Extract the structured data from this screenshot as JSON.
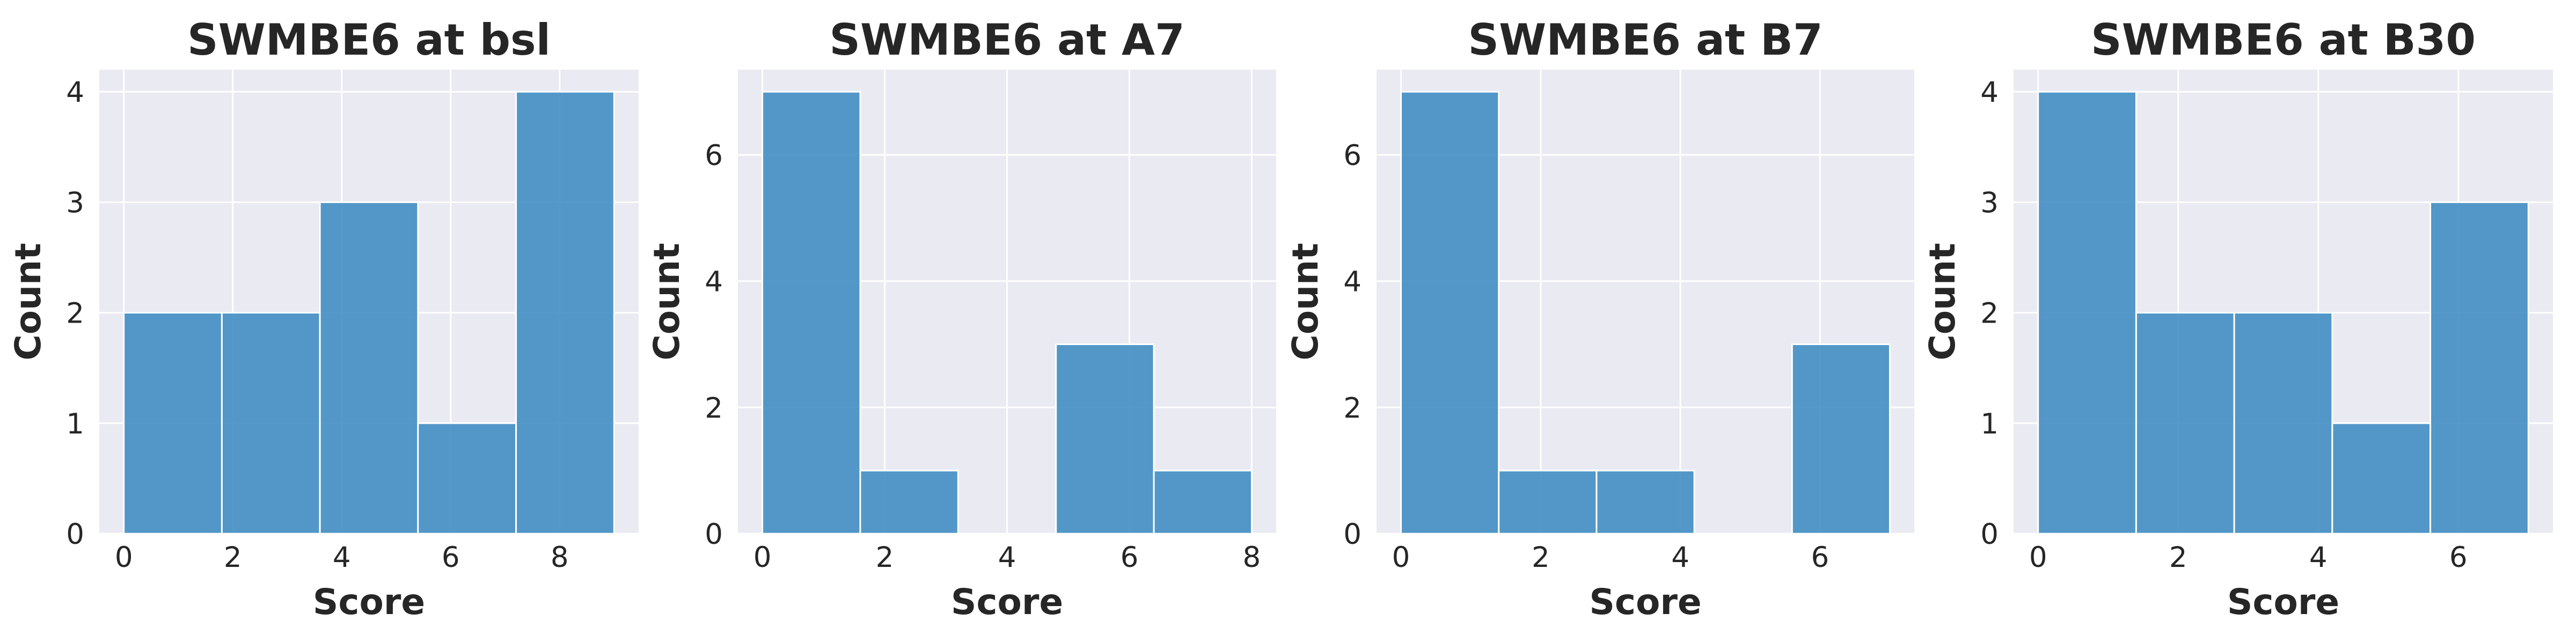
{
  "chart_data": [
    {
      "type": "bar",
      "title": "SWMBE6 at bsl",
      "xlabel": "Score",
      "ylabel": "Count",
      "bin_edges": [
        0,
        1.8,
        3.6,
        5.4,
        7.2,
        9
      ],
      "values": [
        2,
        2,
        3,
        1,
        4
      ],
      "xticks": [
        0,
        2,
        4,
        6,
        8
      ],
      "yticks": [
        0,
        1,
        2,
        3,
        4
      ],
      "xlim": [
        -0.45,
        9.45
      ],
      "ylim": [
        0,
        4.2
      ],
      "grid": true,
      "bar_color": "#3c8bc2"
    },
    {
      "type": "bar",
      "title": "SWMBE6 at A7",
      "xlabel": "Score",
      "ylabel": "Count",
      "bin_edges": [
        0,
        1.6,
        3.2,
        4.8,
        6.4,
        8
      ],
      "values": [
        7,
        1,
        0,
        3,
        1
      ],
      "xticks": [
        0,
        2,
        4,
        6,
        8
      ],
      "yticks": [
        0,
        2,
        4,
        6
      ],
      "xlim": [
        -0.4,
        8.4
      ],
      "ylim": [
        0,
        7.35
      ],
      "grid": true,
      "bar_color": "#3c8bc2"
    },
    {
      "type": "bar",
      "title": "SWMBE6 at B7",
      "xlabel": "Score",
      "ylabel": "Count",
      "bin_edges": [
        0,
        1.4,
        2.8,
        4.2,
        5.6,
        7
      ],
      "values": [
        7,
        1,
        1,
        0,
        3
      ],
      "xticks": [
        0,
        2,
        4,
        6
      ],
      "yticks": [
        0,
        2,
        4,
        6
      ],
      "xlim": [
        -0.35,
        7.35
      ],
      "ylim": [
        0,
        7.35
      ],
      "grid": true,
      "bar_color": "#3c8bc2"
    },
    {
      "type": "bar",
      "title": "SWMBE6 at B30",
      "xlabel": "Score",
      "ylabel": "Count",
      "bin_edges": [
        0,
        1.4,
        2.8,
        4.2,
        5.6,
        7
      ],
      "values": [
        4,
        2,
        2,
        1,
        3
      ],
      "xticks": [
        0,
        2,
        4,
        6
      ],
      "yticks": [
        0,
        1,
        2,
        3,
        4
      ],
      "xlim": [
        -0.35,
        7.35
      ],
      "ylim": [
        0,
        4.2
      ],
      "grid": true,
      "bar_color": "#3c8bc2"
    }
  ]
}
